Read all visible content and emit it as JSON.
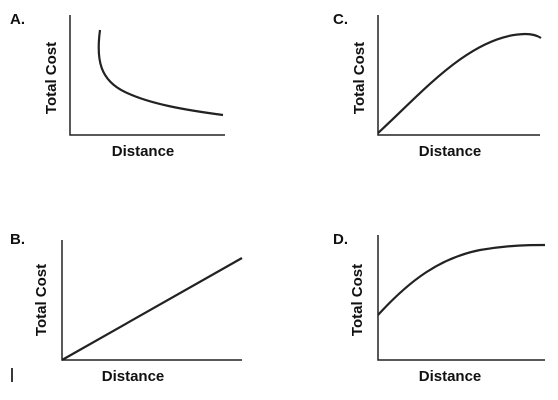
{
  "panels": [
    {
      "label": "A.",
      "x_label": "Distance",
      "y_label": "Total Cost"
    },
    {
      "label": "C.",
      "x_label": "Distance",
      "y_label": "Total Cost"
    },
    {
      "label": "B.",
      "x_label": "Distance",
      "y_label": "Total Cost"
    },
    {
      "label": "D.",
      "x_label": "Distance",
      "y_label": "Total Cost"
    }
  ]
}
